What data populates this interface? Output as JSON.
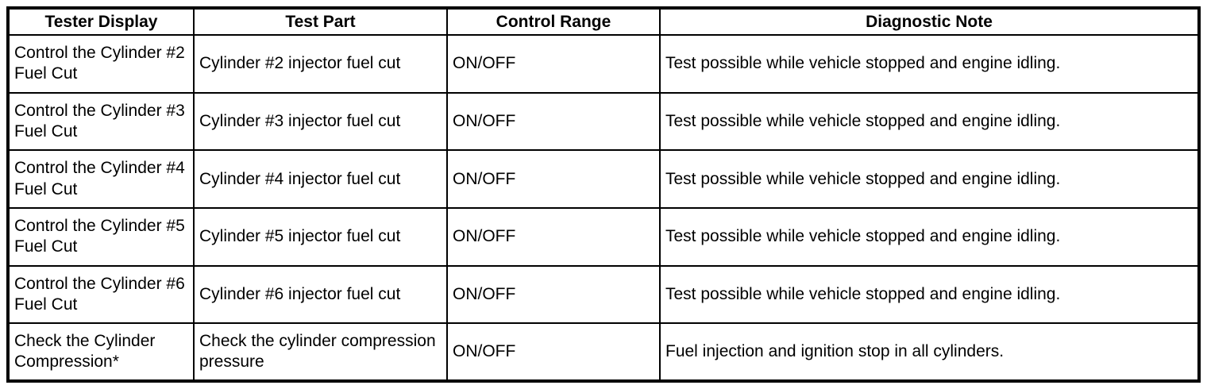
{
  "table": {
    "columns": [
      {
        "label": "Tester Display"
      },
      {
        "label": "Test Part"
      },
      {
        "label": "Control Range"
      },
      {
        "label": "Diagnostic Note"
      }
    ],
    "rows": [
      {
        "tester_display": "Control the Cylinder #2 Fuel Cut",
        "test_part": "Cylinder #2 injector fuel cut",
        "control_range": "ON/OFF",
        "diagnostic_note": "Test possible while vehicle stopped and engine idling."
      },
      {
        "tester_display": "Control the Cylinder #3 Fuel Cut",
        "test_part": "Cylinder #3 injector fuel cut",
        "control_range": "ON/OFF",
        "diagnostic_note": "Test possible while vehicle stopped and engine idling."
      },
      {
        "tester_display": "Control the Cylinder #4 Fuel Cut",
        "test_part": "Cylinder #4 injector fuel cut",
        "control_range": "ON/OFF",
        "diagnostic_note": "Test possible while vehicle stopped and engine idling."
      },
      {
        "tester_display": "Control the Cylinder #5 Fuel Cut",
        "test_part": "Cylinder #5 injector fuel cut",
        "control_range": "ON/OFF",
        "diagnostic_note": "Test possible while vehicle stopped and engine idling."
      },
      {
        "tester_display": "Control the Cylinder #6 Fuel Cut",
        "test_part": "Cylinder #6 injector fuel cut",
        "control_range": "ON/OFF",
        "diagnostic_note": "Test possible while vehicle stopped and engine idling."
      },
      {
        "tester_display": "Check the Cylinder Compression*",
        "test_part": "Check the cylinder compression pressure",
        "control_range": "ON/OFF",
        "diagnostic_note": "Fuel injection and ignition stop in all cylinders."
      }
    ],
    "colors": {
      "border": "#000000",
      "text": "#000000",
      "background": "#ffffff"
    }
  }
}
